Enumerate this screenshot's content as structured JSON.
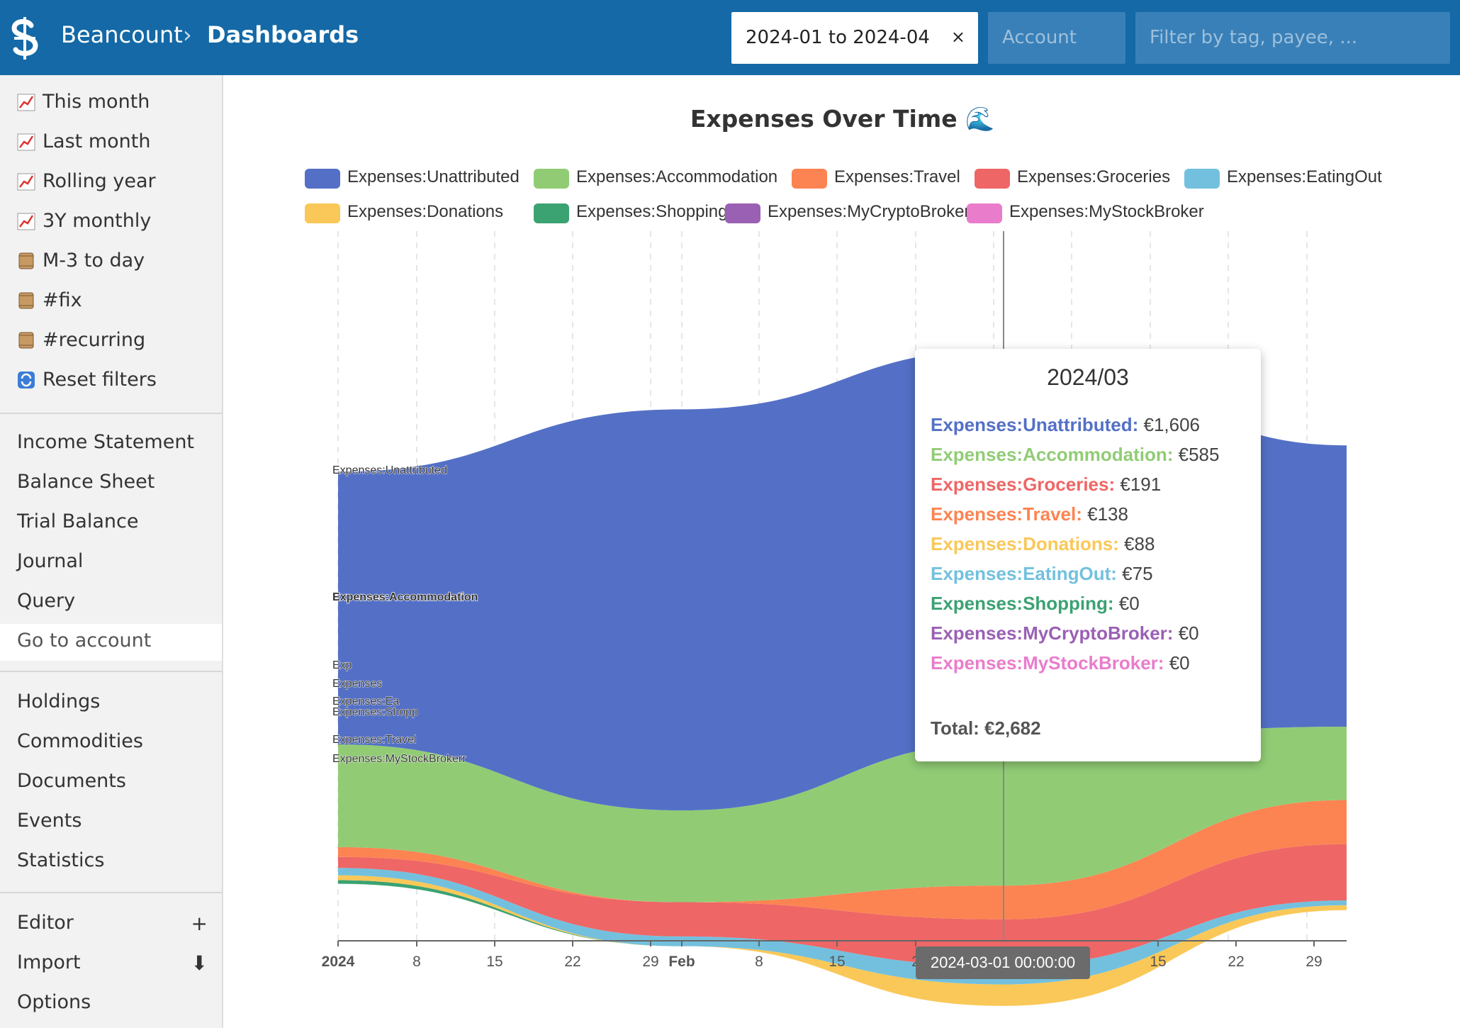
{
  "header": {
    "app_name": "Beancount",
    "breadcrumb_separator": "›",
    "page_name": "Dashboards",
    "time_filter": {
      "value": "2024-01 to 2024-04",
      "clear": "×"
    },
    "account_filter": {
      "placeholder": "Account"
    },
    "tag_filter": {
      "placeholder": "Filter by tag, payee, ..."
    }
  },
  "sidebar": {
    "dashboards": [
      {
        "icon": "chart-increasing-icon",
        "label": "This month"
      },
      {
        "icon": "chart-increasing-icon",
        "label": "Last month"
      },
      {
        "icon": "chart-increasing-icon",
        "label": "Rolling year"
      },
      {
        "icon": "chart-increasing-icon",
        "label": "3Y monthly"
      },
      {
        "icon": "scroll-icon",
        "label": "M-3 to day"
      },
      {
        "icon": "scroll-icon",
        "label": "#fix"
      },
      {
        "icon": "scroll-icon",
        "label": "#recurring"
      },
      {
        "icon": "repeat-icon",
        "label": "Reset filters"
      }
    ],
    "reports": [
      "Income Statement",
      "Balance Sheet",
      "Trial Balance",
      "Journal",
      "Query",
      "Go to account"
    ],
    "more": [
      "Holdings",
      "Commodities",
      "Documents",
      "Events",
      "Statistics"
    ],
    "tools": [
      {
        "label": "Editor",
        "icon": "+"
      },
      {
        "label": "Import",
        "icon": "⬇"
      },
      {
        "label": "Options",
        "icon": ""
      }
    ]
  },
  "chart_data": {
    "type": "area",
    "title": "Expenses Over Time 🌊",
    "x": [
      "2024-01",
      "2024-02",
      "2024-03",
      "2024-04"
    ],
    "x_ticks": [
      "2024",
      "8",
      "15",
      "22",
      "29",
      "Feb",
      "8",
      "15",
      "2",
      "15",
      "22",
      "29"
    ],
    "series": [
      {
        "name": "Expenses:Unattributed",
        "color": "#5470c6",
        "values": [
          1115,
          1640,
          1606,
          1150
        ]
      },
      {
        "name": "Expenses:Accommodation",
        "color": "#91cc75",
        "values": [
          420,
          375,
          585,
          300
        ]
      },
      {
        "name": "Expenses:Travel",
        "color": "#fc8452",
        "values": [
          40,
          0,
          138,
          180
        ]
      },
      {
        "name": "Expenses:Groceries",
        "color": "#ee6666",
        "values": [
          45,
          140,
          191,
          230
        ]
      },
      {
        "name": "Expenses:EatingOut",
        "color": "#73c0de",
        "values": [
          30,
          40,
          75,
          20
        ]
      },
      {
        "name": "Expenses:Donations",
        "color": "#fac858",
        "values": [
          20,
          0,
          88,
          20
        ]
      },
      {
        "name": "Expenses:Shopping",
        "color": "#3ba272",
        "values": [
          15,
          0,
          0,
          0
        ]
      },
      {
        "name": "Expenses:MyCryptoBroker",
        "color": "#9a60b4",
        "values": [
          0,
          0,
          0,
          0
        ]
      },
      {
        "name": "Expenses:MyStockBroker",
        "color": "#ea7ccc",
        "values": [
          0,
          0,
          0,
          0
        ]
      }
    ],
    "area_labels": [
      "Expenses:Unattributed",
      "Expenses:Accommodation",
      "Exp",
      "Expenses",
      "Expenses:Ea",
      "Expenses:Shopp",
      "Expenses:Travel",
      "Expenses:MyStockBrokerr"
    ],
    "tooltip": {
      "title": "2024/03",
      "rows": [
        {
          "name": "Expenses:Unattributed:",
          "value": "€1,606",
          "color": "#5470c6"
        },
        {
          "name": "Expenses:Accommodation:",
          "value": "€585",
          "color": "#91cc75"
        },
        {
          "name": "Expenses:Groceries:",
          "value": "€191",
          "color": "#ee6666"
        },
        {
          "name": "Expenses:Travel:",
          "value": "€138",
          "color": "#fc8452"
        },
        {
          "name": "Expenses:Donations:",
          "value": "€88",
          "color": "#fac858"
        },
        {
          "name": "Expenses:EatingOut:",
          "value": "€75",
          "color": "#73c0de"
        },
        {
          "name": "Expenses:Shopping:",
          "value": "€0",
          "color": "#3ba272"
        },
        {
          "name": "Expenses:MyCryptoBroker:",
          "value": "€0",
          "color": "#9a60b4"
        },
        {
          "name": "Expenses:MyStockBroker:",
          "value": "€0",
          "color": "#ea7ccc"
        }
      ],
      "total": "Total: €2,682"
    },
    "axis_pointer_label": "2024-03-01 00:00:00"
  }
}
